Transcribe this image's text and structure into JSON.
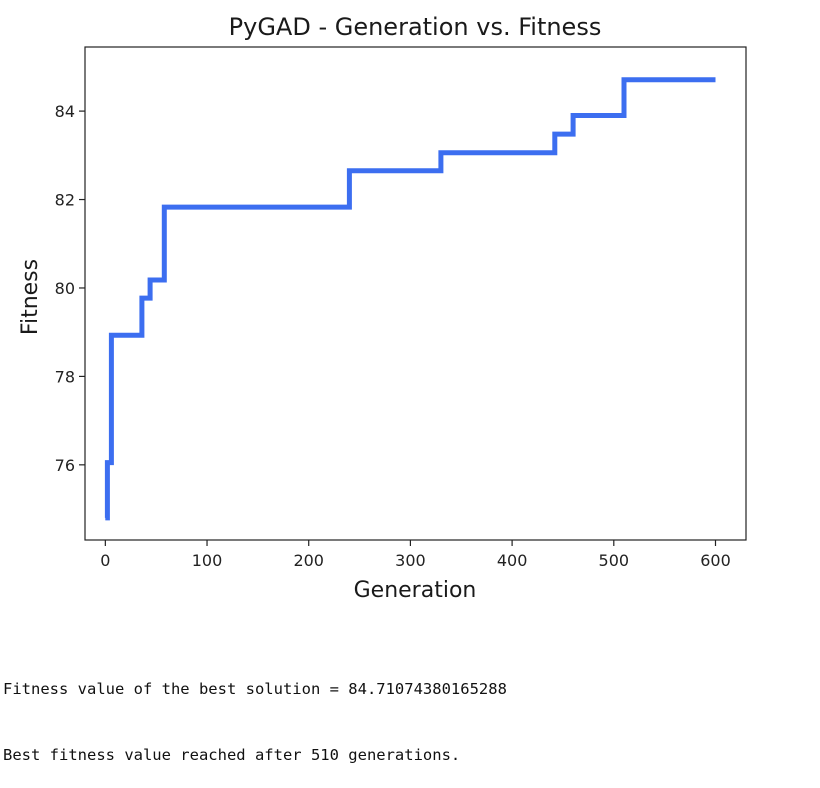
{
  "chart_data": {
    "type": "line",
    "title": "PyGAD - Generation vs. Fitness",
    "xlabel": "Generation",
    "ylabel": "Fitness",
    "xlim": [
      -20,
      630
    ],
    "ylim": [
      74.3,
      85.45
    ],
    "xticks": [
      0,
      100,
      200,
      300,
      400,
      500,
      600
    ],
    "yticks": [
      76,
      78,
      80,
      82,
      84
    ],
    "line_color": "#3c6ef0",
    "grid": false,
    "legend": "none",
    "series": [
      {
        "values_step": "post",
        "x": [
          0,
          2,
          6,
          36,
          40,
          44,
          58,
          240,
          330,
          442,
          444,
          460,
          462,
          510,
          600
        ],
        "y": [
          74.8,
          76.05,
          78.93,
          79.77,
          79.77,
          80.18,
          81.83,
          82.65,
          83.06,
          83.48,
          83.48,
          83.9,
          83.9,
          84.71,
          84.71
        ]
      }
    ]
  },
  "console": {
    "line1": "Fitness value of the best solution = 84.71074380165288",
    "line2": "Best fitness value reached after 510 generations."
  }
}
